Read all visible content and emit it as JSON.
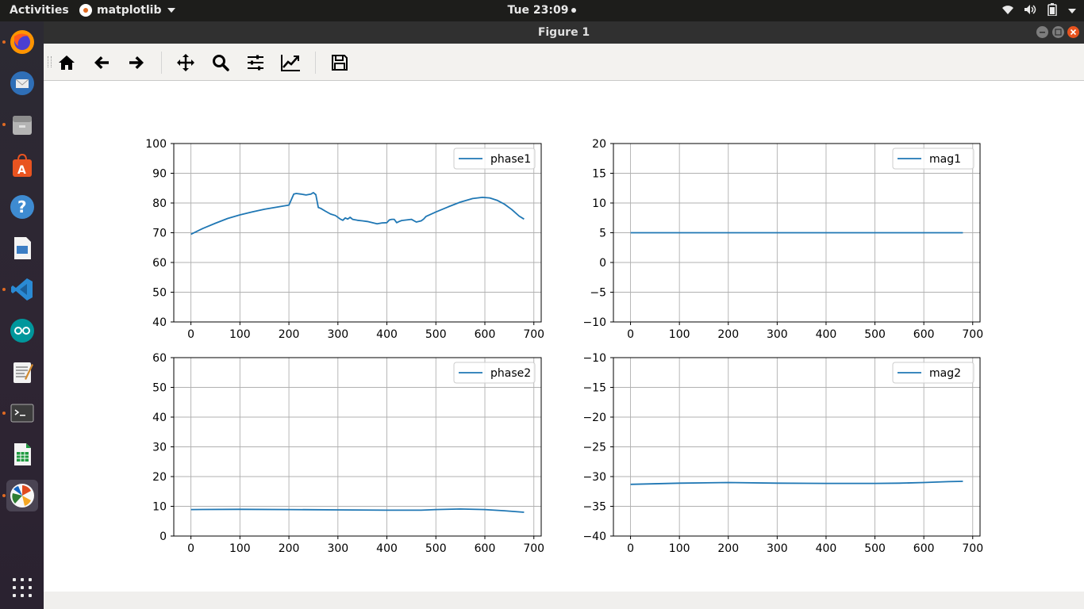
{
  "topbar": {
    "activities": "Activities",
    "app_name": "matplotlib",
    "clock": "Tue 23:09"
  },
  "window": {
    "title": "Figure 1"
  },
  "toolbar": {
    "buttons": [
      "home",
      "back",
      "forward",
      "pan",
      "zoom",
      "configure-subplots",
      "edit-axes",
      "save"
    ]
  },
  "dock": {
    "items": [
      "Firefox",
      "Thunderbird",
      "Files",
      "Ubuntu Software",
      "Help",
      "Document Viewer",
      "Visual Studio Code",
      "Arduino IDE",
      "Text Editor",
      "Terminal",
      "LibreOffice Calc",
      "matplotlib"
    ]
  },
  "colors": {
    "line": "#1f77b4",
    "grid": "#b0b0b0"
  },
  "chart_data": [
    {
      "type": "line",
      "legend": "phase1",
      "legend_position": "top-right",
      "grid": true,
      "xlim": [
        -35,
        715
      ],
      "ylim": [
        40,
        100
      ],
      "xticks": [
        0,
        100,
        200,
        300,
        400,
        500,
        600,
        700
      ],
      "yticks": [
        40,
        50,
        60,
        70,
        80,
        90,
        100
      ],
      "series": [
        {
          "x": [
            0,
            25,
            50,
            75,
            100,
            125,
            150,
            175,
            200,
            210,
            215,
            225,
            235,
            245,
            250,
            255,
            260,
            265,
            275,
            285,
            295,
            305,
            310,
            315,
            320,
            325,
            330,
            340,
            350,
            360,
            370,
            380,
            390,
            400,
            405,
            410,
            415,
            420,
            425,
            430,
            440,
            450,
            460,
            465,
            470,
            475,
            480,
            500,
            525,
            550,
            575,
            595,
            610,
            625,
            640,
            655,
            670,
            680
          ],
          "y": [
            69.5,
            71.5,
            73.2,
            74.8,
            76.0,
            77.0,
            77.9,
            78.6,
            79.3,
            83.0,
            83.2,
            83.0,
            82.7,
            83.0,
            83.5,
            82.8,
            78.5,
            78.2,
            77.2,
            76.3,
            75.8,
            74.6,
            74.2,
            75.0,
            74.6,
            75.2,
            74.5,
            74.2,
            74.0,
            73.8,
            73.4,
            73.0,
            73.3,
            73.4,
            74.3,
            74.5,
            74.5,
            73.4,
            73.8,
            74.1,
            74.3,
            74.5,
            73.6,
            73.8,
            74.0,
            74.6,
            75.5,
            77.0,
            78.7,
            80.3,
            81.5,
            81.9,
            81.7,
            80.9,
            79.6,
            77.8,
            75.6,
            74.6
          ]
        }
      ]
    },
    {
      "type": "line",
      "legend": "mag1",
      "legend_position": "top-right",
      "grid": true,
      "xlim": [
        -35,
        715
      ],
      "ylim": [
        -10,
        20
      ],
      "xticks": [
        0,
        100,
        200,
        300,
        400,
        500,
        600,
        700
      ],
      "yticks": [
        -10,
        -5,
        0,
        5,
        10,
        15,
        20
      ],
      "series": [
        {
          "x": [
            0,
            680
          ],
          "y": [
            5,
            5
          ]
        }
      ]
    },
    {
      "type": "line",
      "legend": "phase2",
      "legend_position": "top-right",
      "grid": true,
      "xlim": [
        -35,
        715
      ],
      "ylim": [
        0,
        60
      ],
      "xticks": [
        0,
        100,
        200,
        300,
        400,
        500,
        600,
        700
      ],
      "yticks": [
        0,
        10,
        20,
        30,
        40,
        50,
        60
      ],
      "series": [
        {
          "x": [
            0,
            100,
            200,
            300,
            400,
            470,
            500,
            550,
            600,
            640,
            680
          ],
          "y": [
            8.9,
            9.0,
            8.9,
            8.8,
            8.7,
            8.7,
            8.9,
            9.1,
            8.9,
            8.5,
            8.0
          ]
        }
      ]
    },
    {
      "type": "line",
      "legend": "mag2",
      "legend_position": "top-right",
      "grid": true,
      "xlim": [
        -35,
        715
      ],
      "ylim": [
        -40,
        -10
      ],
      "xticks": [
        0,
        100,
        200,
        300,
        400,
        500,
        600,
        700
      ],
      "yticks": [
        -40,
        -35,
        -30,
        -25,
        -20,
        -15,
        -10
      ],
      "series": [
        {
          "x": [
            0,
            100,
            200,
            300,
            400,
            500,
            550,
            600,
            650,
            680
          ],
          "y": [
            -31.3,
            -31.1,
            -31.0,
            -31.1,
            -31.15,
            -31.15,
            -31.1,
            -31.0,
            -30.85,
            -30.8
          ]
        }
      ]
    }
  ]
}
